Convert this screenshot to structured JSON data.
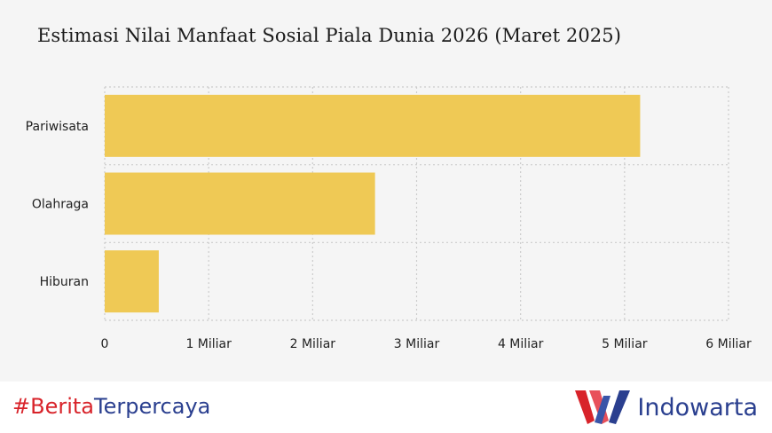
{
  "chart_data": {
    "type": "bar",
    "orientation": "horizontal",
    "title": "Estimasi Nilai Manfaat Sosial Piala Dunia 2026 (Maret 2025)",
    "categories": [
      "Pariwisata",
      "Olahraga",
      "Hiburan"
    ],
    "values": [
      5.15,
      2.6,
      0.52
    ],
    "xlim": [
      0,
      6
    ],
    "x_ticks": [
      0,
      1,
      2,
      3,
      4,
      5,
      6
    ],
    "x_tick_labels": [
      "0",
      "1 Miliar",
      "2 Miliar",
      "3 Miliar",
      "4 Miliar",
      "5 Miliar",
      "6 Miliar"
    ],
    "grid": true,
    "grid_style": "dotted",
    "bar_color": "#efc955",
    "legend": "none"
  },
  "footer": {
    "hashtag_hash": "#",
    "hashtag_red": "Berita",
    "hashtag_blue": "Terpercaya",
    "brand_name": "Indowarta",
    "brand_icon": "indowarta-w-logo-icon"
  },
  "colors": {
    "background": "#f5f5f5",
    "footer_background": "#ffffff",
    "accent_red": "#d8232a",
    "accent_blue": "#2a3f8f"
  }
}
